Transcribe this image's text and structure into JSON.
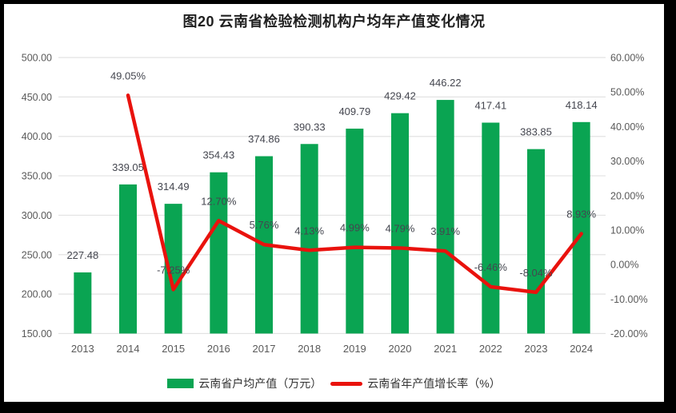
{
  "title": "图20  云南省检验检测机构户均年产值变化情况",
  "legend": {
    "bar_label": "云南省户均产值（万元）",
    "line_label": "云南省年产值增长率（%）"
  },
  "colors": {
    "bar": "#0aa452",
    "line": "#e9120d",
    "grid": "#e2e2e2",
    "axis_text": "#595959",
    "label_text": "#44464f",
    "frame": "#000000",
    "background": "#ffffff"
  },
  "chart_data": {
    "type": "bar",
    "subtype": "bar+line combo, dual axis",
    "title": "图20  云南省检验检测机构户均年产值变化情况",
    "categories": [
      "2013",
      "2014",
      "2015",
      "2016",
      "2017",
      "2018",
      "2019",
      "2020",
      "2021",
      "2022",
      "2023",
      "2024"
    ],
    "series": [
      {
        "name": "云南省户均产值（万元）",
        "type": "bar",
        "axis": "left",
        "values": [
          227.48,
          339.05,
          314.49,
          354.43,
          374.86,
          390.33,
          409.79,
          429.42,
          446.22,
          417.41,
          383.85,
          418.14
        ],
        "labels": [
          "227.48",
          "339.05",
          "314.49",
          "354.43",
          "374.86",
          "390.33",
          "409.79",
          "429.42",
          "446.22",
          "417.41",
          "383.85",
          "418.14"
        ]
      },
      {
        "name": "云南省年产值增长率（%）",
        "type": "line",
        "axis": "right",
        "values": [
          null,
          49.05,
          -7.25,
          12.7,
          5.76,
          4.13,
          4.99,
          4.79,
          3.91,
          -6.46,
          -8.04,
          8.93
        ],
        "labels": [
          null,
          "49.05%",
          "-7.25%",
          "12.70%",
          "5.76%",
          "4.13%",
          "4.99%",
          "4.79%",
          "3.91%",
          "-6.46%",
          "-8.04%",
          "8.93%"
        ]
      }
    ],
    "left_axis": {
      "min": 150,
      "max": 500,
      "step": 50,
      "ticks": [
        "500.00",
        "450.00",
        "400.00",
        "350.00",
        "300.00",
        "250.00",
        "200.00",
        "150.00"
      ]
    },
    "right_axis": {
      "min": -20,
      "max": 60,
      "step": 10,
      "ticks": [
        "60.00%",
        "50.00%",
        "40.00%",
        "30.00%",
        "20.00%",
        "10.00%",
        "0.00%",
        "-10.00%",
        "-20.00%"
      ]
    },
    "grid": "horizontal",
    "legend_position": "bottom"
  }
}
